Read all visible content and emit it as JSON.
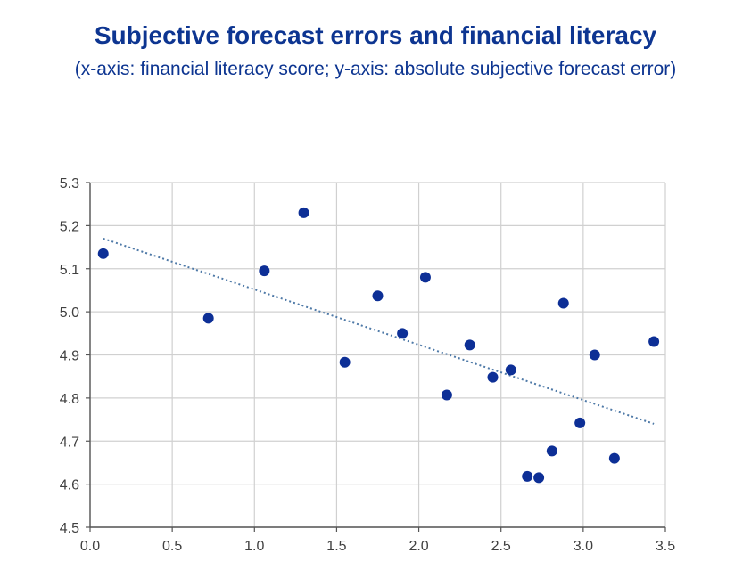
{
  "title": "Subjective forecast errors and financial literacy",
  "subtitle": "(x-axis: financial literacy score; y-axis: absolute subjective forecast error)",
  "colors": {
    "title": "#0d3591",
    "points": "#0d2f96",
    "trendline": "#4e79a7",
    "grid": "#d0d0d0"
  },
  "chart_data": {
    "type": "scatter",
    "title": "Subjective forecast errors and financial literacy",
    "subtitle": "(x-axis: financial literacy score; y-axis: absolute subjective forecast error)",
    "xlabel": "",
    "ylabel": "",
    "xlim": [
      0.0,
      3.5
    ],
    "ylim": [
      4.5,
      5.3
    ],
    "xticks": [
      "0.0",
      "0.5",
      "1.0",
      "1.5",
      "2.0",
      "2.5",
      "3.0",
      "3.5"
    ],
    "yticks": [
      "4.5",
      "4.6",
      "4.7",
      "4.8",
      "4.9",
      "5.0",
      "5.1",
      "5.2",
      "5.3"
    ],
    "grid": true,
    "legend": "none",
    "points": [
      {
        "x": 0.08,
        "y": 5.135
      },
      {
        "x": 0.72,
        "y": 4.985
      },
      {
        "x": 1.06,
        "y": 5.095
      },
      {
        "x": 1.3,
        "y": 5.23
      },
      {
        "x": 1.55,
        "y": 4.883
      },
      {
        "x": 1.75,
        "y": 5.037
      },
      {
        "x": 1.9,
        "y": 4.95
      },
      {
        "x": 2.04,
        "y": 5.08
      },
      {
        "x": 2.17,
        "y": 4.807
      },
      {
        "x": 2.31,
        "y": 4.923
      },
      {
        "x": 2.45,
        "y": 4.848
      },
      {
        "x": 2.56,
        "y": 4.865
      },
      {
        "x": 2.66,
        "y": 4.618
      },
      {
        "x": 2.73,
        "y": 4.615
      },
      {
        "x": 2.81,
        "y": 4.677
      },
      {
        "x": 2.88,
        "y": 5.02
      },
      {
        "x": 2.98,
        "y": 4.742
      },
      {
        "x": 3.07,
        "y": 4.9
      },
      {
        "x": 3.19,
        "y": 4.66
      },
      {
        "x": 3.43,
        "y": 4.931
      }
    ],
    "trendline": {
      "style": "dotted",
      "x1": 0.08,
      "y1": 5.17,
      "x2": 3.43,
      "y2": 4.74
    }
  }
}
